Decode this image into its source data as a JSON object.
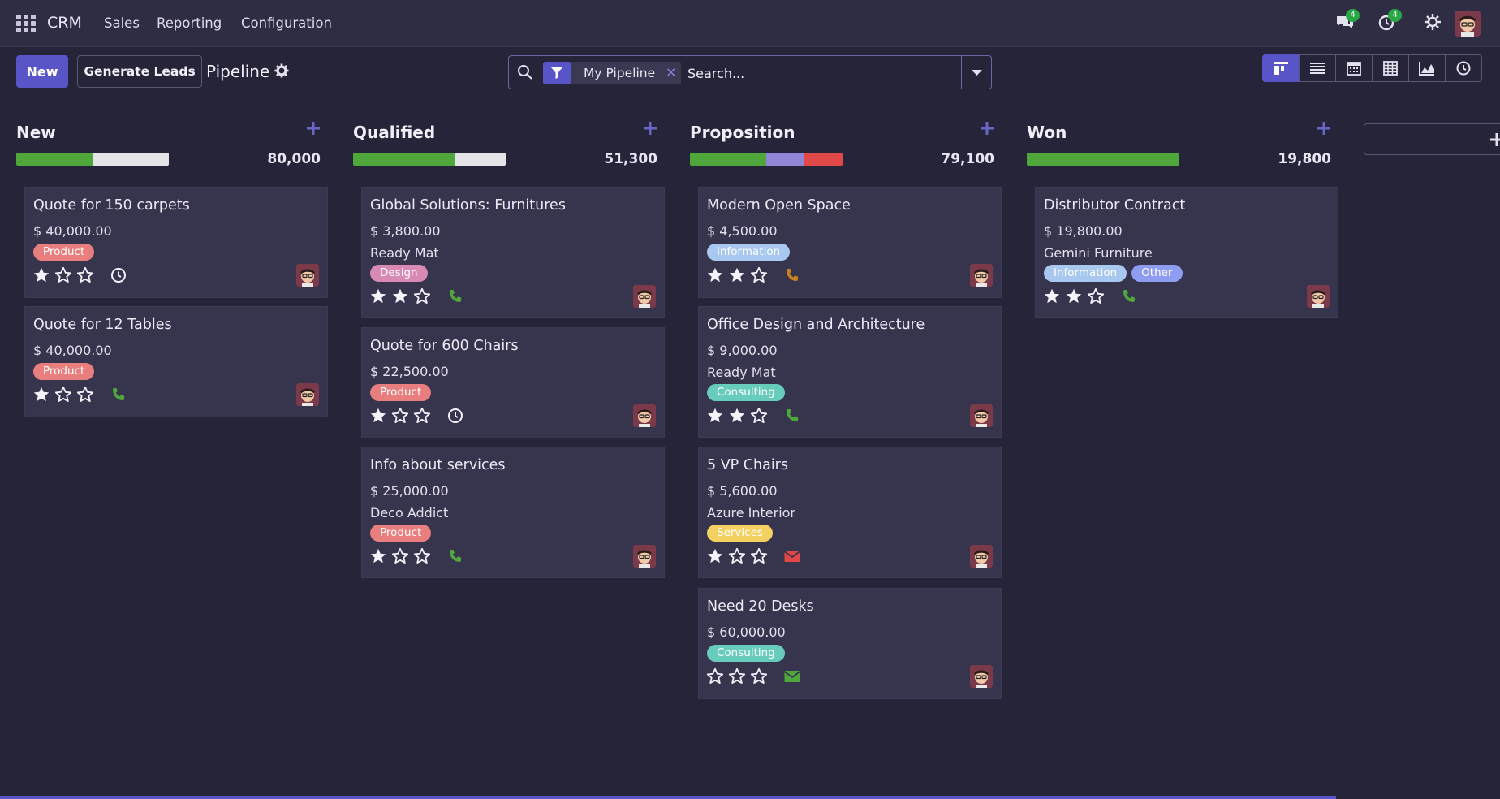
{
  "navbar": {
    "brand": "CRM",
    "menu": [
      {
        "label": "Sales"
      },
      {
        "label": "Reporting"
      },
      {
        "label": "Configuration"
      }
    ],
    "messages_count": "4",
    "activities_count": "4"
  },
  "control_panel": {
    "new_label": "New",
    "generate_label": "Generate Leads",
    "breadcrumb": "Pipeline",
    "search": {
      "facet": "My Pipeline",
      "facet_remove": "×",
      "placeholder": "Search..."
    },
    "views": [
      "kanban-icon",
      "list-icon",
      "calendar-icon",
      "pivot-icon",
      "graph-icon",
      "activity-icon"
    ]
  },
  "colors": {
    "accent": "#5a54c9",
    "progress_green": "#4fa63b",
    "progress_grey": "#e4e4e8",
    "progress_purple": "#9085d6",
    "progress_red": "#e04848",
    "tag_product": "#e87e7e",
    "tag_design": "#d98ab4",
    "tag_information": "#a8c8ef",
    "tag_consulting": "#67ccbc",
    "tag_services": "#f2d160",
    "tag_other": "#8e9cf2"
  },
  "columns": [
    {
      "title": "New",
      "total": "80,000",
      "progress": [
        {
          "color": "#4fa63b",
          "share": 0.5
        },
        {
          "color": "#e4e4e8",
          "share": 0.5
        }
      ],
      "cards": [
        {
          "name": "Quote for 150 carpets",
          "amount": "$ 40,000.00",
          "company": "",
          "tags": [
            {
              "label": "Product",
              "color": "#e87e7e"
            }
          ],
          "stars": 1,
          "activity": "clock"
        },
        {
          "name": "Quote for 12 Tables",
          "amount": "$ 40,000.00",
          "company": "",
          "tags": [
            {
              "label": "Product",
              "color": "#e87e7e"
            }
          ],
          "stars": 1,
          "activity": "phone-green"
        }
      ]
    },
    {
      "title": "Qualified",
      "total": "51,300",
      "progress": [
        {
          "color": "#4fa63b",
          "share": 0.67
        },
        {
          "color": "#e4e4e8",
          "share": 0.33
        }
      ],
      "cards": [
        {
          "name": "Global Solutions: Furnitures",
          "amount": "$ 3,800.00",
          "company": "Ready Mat",
          "tags": [
            {
              "label": "Design",
              "color": "#d98ab4"
            }
          ],
          "stars": 2,
          "activity": "phone-green"
        },
        {
          "name": "Quote for 600 Chairs",
          "amount": "$ 22,500.00",
          "company": "",
          "tags": [
            {
              "label": "Product",
              "color": "#e87e7e"
            }
          ],
          "stars": 1,
          "activity": "clock"
        },
        {
          "name": "Info about services",
          "amount": "$ 25,000.00",
          "company": "Deco Addict",
          "tags": [
            {
              "label": "Product",
              "color": "#e87e7e"
            }
          ],
          "stars": 1,
          "activity": "phone-green"
        }
      ]
    },
    {
      "title": "Proposition",
      "total": "79,100",
      "progress": [
        {
          "color": "#4fa63b",
          "share": 0.5
        },
        {
          "color": "#9085d6",
          "share": 0.25
        },
        {
          "color": "#e04848",
          "share": 0.25
        }
      ],
      "cards": [
        {
          "name": "Modern Open Space",
          "amount": "$ 4,500.00",
          "company": "",
          "tags": [
            {
              "label": "Information",
              "color": "#a8c8ef"
            }
          ],
          "stars": 2,
          "activity": "phone-orange"
        },
        {
          "name": "Office Design and Architecture",
          "amount": "$ 9,000.00",
          "company": "Ready Mat",
          "tags": [
            {
              "label": "Consulting",
              "color": "#67ccbc"
            }
          ],
          "stars": 2,
          "activity": "phone-green"
        },
        {
          "name": "5 VP Chairs",
          "amount": "$ 5,600.00",
          "company": "Azure Interior",
          "tags": [
            {
              "label": "Services",
              "color": "#f2d160"
            }
          ],
          "stars": 1,
          "activity": "email-red"
        },
        {
          "name": "Need 20 Desks",
          "amount": "$ 60,000.00",
          "company": "",
          "tags": [
            {
              "label": "Consulting",
              "color": "#67ccbc"
            }
          ],
          "stars": 0,
          "activity": "email-green"
        }
      ]
    },
    {
      "title": "Won",
      "total": "19,800",
      "progress": [
        {
          "color": "#4fa63b",
          "share": 1
        }
      ],
      "cards": [
        {
          "name": "Distributor Contract",
          "amount": "$ 19,800.00",
          "company": "Gemini Furniture",
          "tags": [
            {
              "label": "Information",
              "color": "#a8c8ef"
            },
            {
              "label": "Other",
              "color": "#8e9cf2"
            }
          ],
          "stars": 2,
          "activity": "phone-green"
        }
      ]
    }
  ]
}
